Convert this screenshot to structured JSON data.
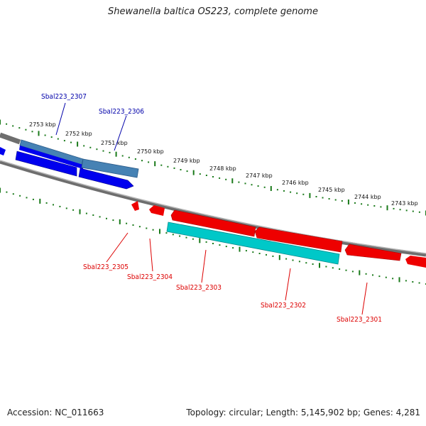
{
  "title": "Shewanella baltica OS223, complete genome",
  "footer": {
    "accession": "Accession: NC_011663",
    "summary": "Topology: circular; Length: 5,145,902 bp; Genes: 4,281"
  },
  "colors": {
    "forward_gene": "#0000ee",
    "forward_highlight": "#4682b4",
    "reverse_gene": "#ee0000",
    "reverse_highlight": "#00c8c8",
    "forward_label": "#0000aa",
    "reverse_label": "#dd0000",
    "tick": "#1a7a1a",
    "backbone": "#7a7a7a"
  },
  "tick_labels": [
    "2753 kbp",
    "2752 kbp",
    "2751 kbp",
    "2750 kbp",
    "2749 kbp",
    "2748 kbp",
    "2747 kbp",
    "2746 kbp",
    "2745 kbp",
    "2744 kbp",
    "2743 kbp"
  ],
  "gene_labels": {
    "forward": [
      "Sbal223_2307",
      "Sbal223_2306"
    ],
    "reverse": [
      "Sbal223_2305",
      "Sbal223_2304",
      "Sbal223_2303",
      "Sbal223_2302",
      "Sbal223_2301"
    ]
  }
}
